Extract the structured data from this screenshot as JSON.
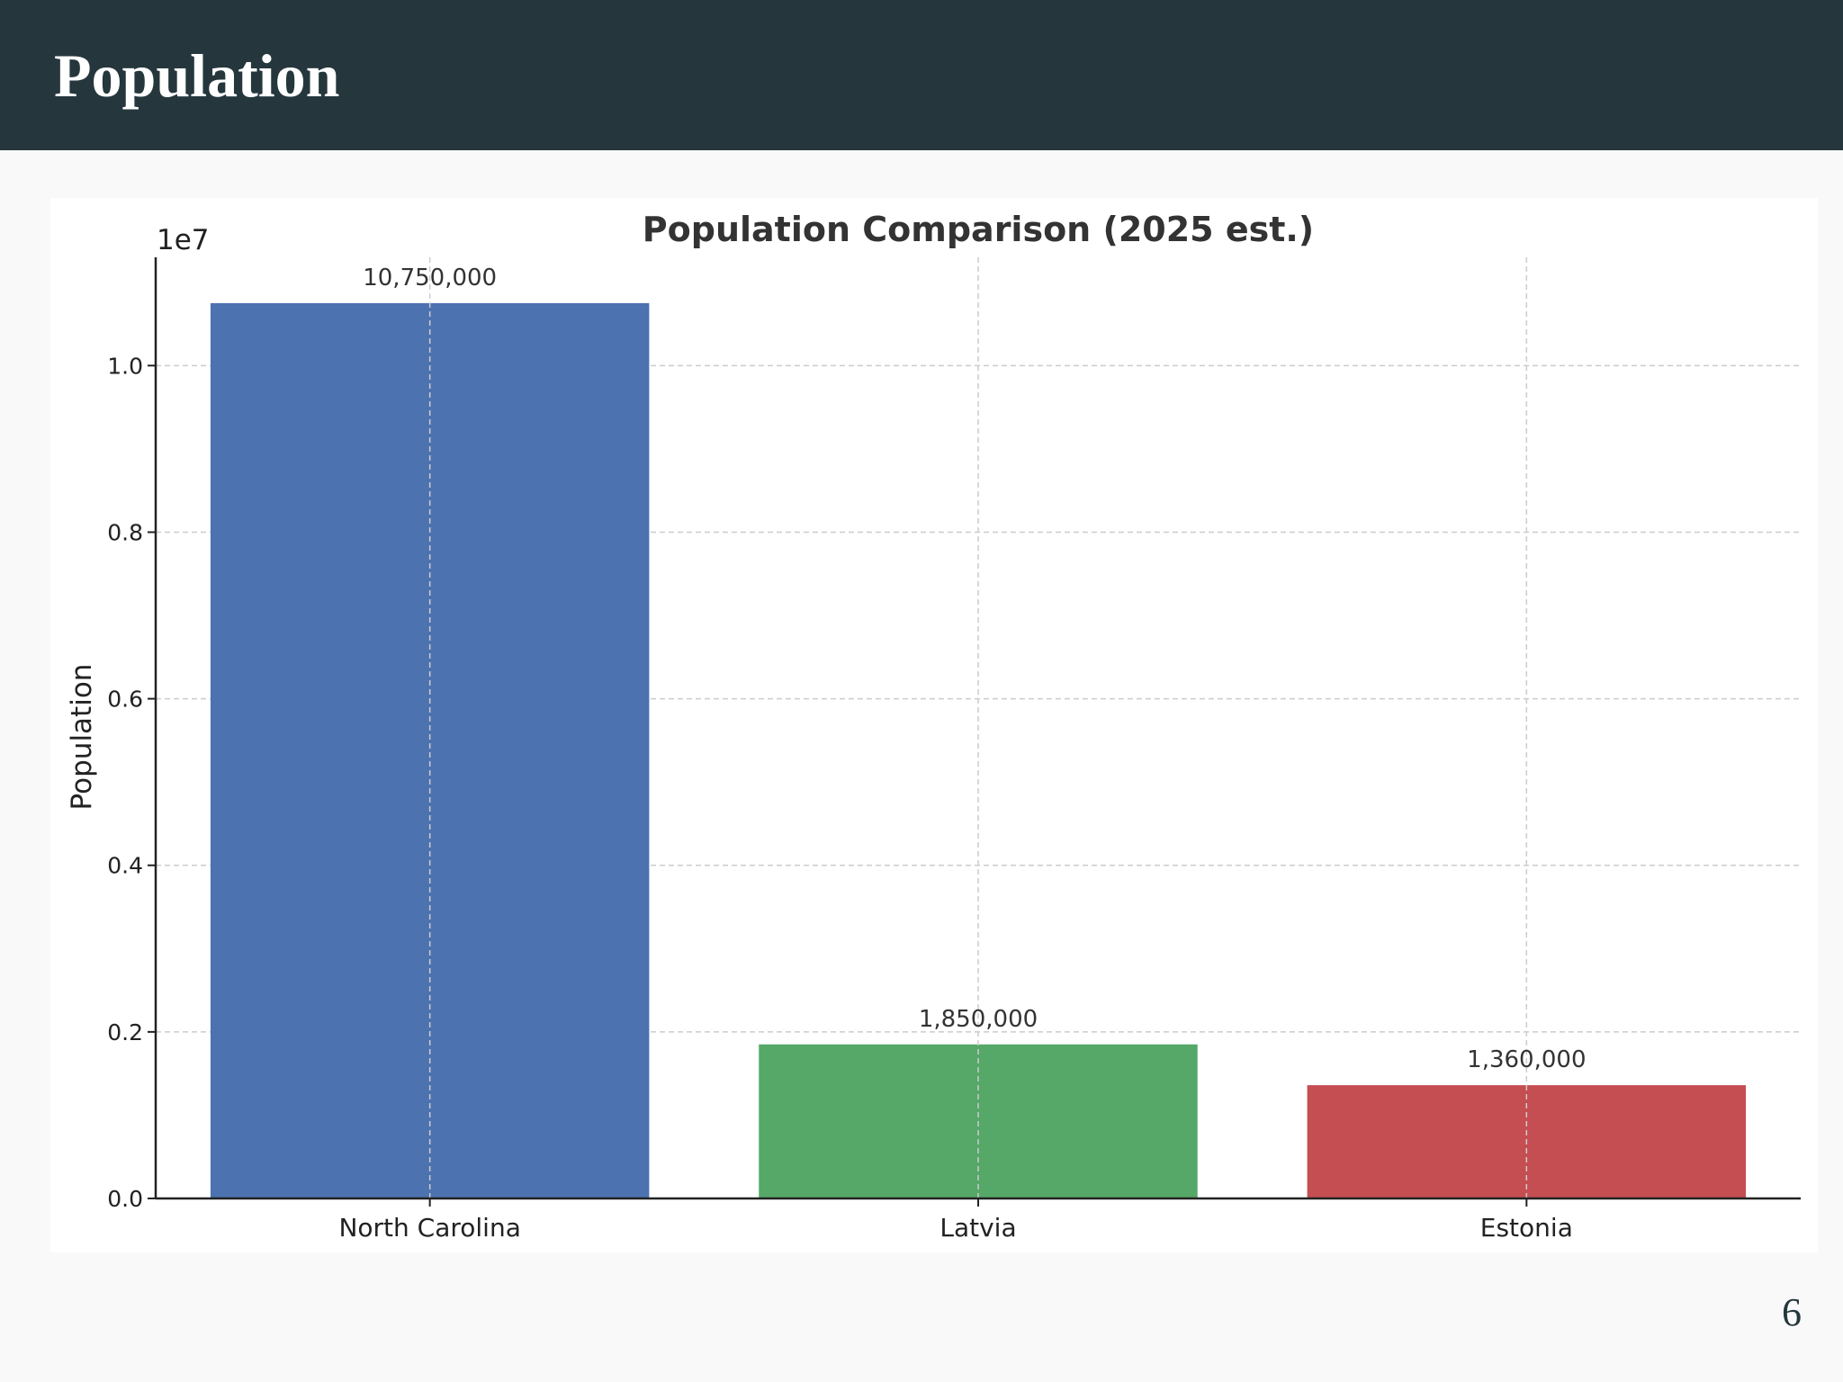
{
  "slide": {
    "title": "Population",
    "page_number": "6"
  },
  "chart_data": {
    "type": "bar",
    "title": "Population Comparison (2025 est.)",
    "xlabel": "",
    "ylabel": "Population",
    "scale_label": "1e7",
    "ylim": [
      0,
      11300000
    ],
    "yticks": [
      0,
      2000000,
      4000000,
      6000000,
      8000000,
      10000000
    ],
    "ytick_labels": [
      "0.0",
      "0.2",
      "0.4",
      "0.6",
      "0.8",
      "1.0"
    ],
    "categories": [
      "North Carolina",
      "Latvia",
      "Estonia"
    ],
    "values": [
      10750000,
      1850000,
      1360000
    ],
    "value_labels": [
      "10,750,000",
      "1,850,000",
      "1,360,000"
    ],
    "colors": [
      "#4c72b0",
      "#55a868",
      "#c44e52"
    ],
    "grid": true
  }
}
